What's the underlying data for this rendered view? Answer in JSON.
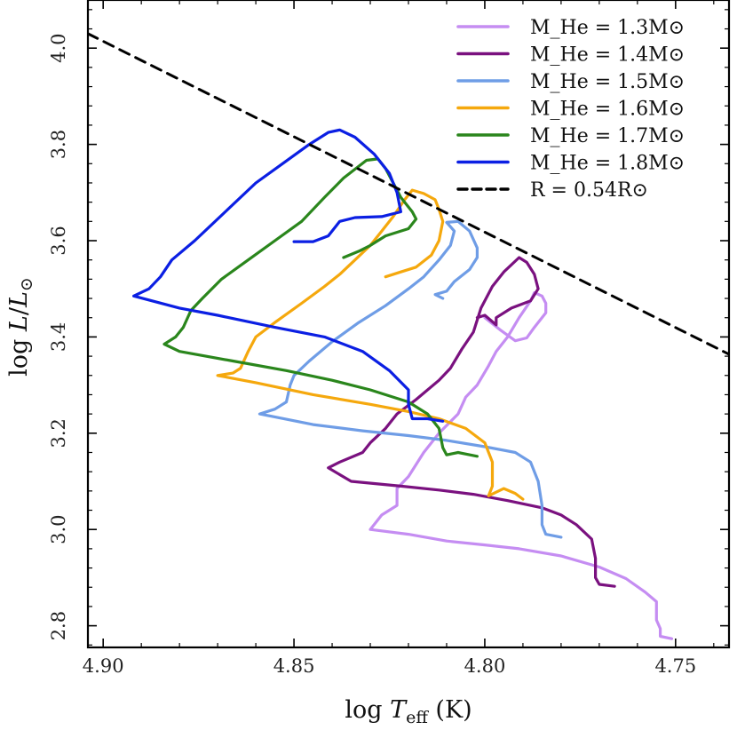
{
  "chart_data": {
    "type": "line",
    "xlabel": "log T_eff (K)",
    "ylabel": "log L/L⊙",
    "xlim": [
      4.904,
      4.736
    ],
    "ylim": [
      2.755,
      4.1
    ],
    "x_inverted": true,
    "x_ticks": [
      4.9,
      4.85,
      4.8,
      4.75
    ],
    "x_tick_labels": [
      "4.90",
      "4.85",
      "4.80",
      "4.75"
    ],
    "y_ticks": [
      2.8,
      3.0,
      3.2,
      3.4,
      3.6,
      3.8,
      4.0
    ],
    "y_tick_labels": [
      "2.8",
      "3.0",
      "3.2",
      "3.4",
      "3.6",
      "3.8",
      "4.0"
    ],
    "grid": false,
    "legend_position": "top-right",
    "series": [
      {
        "name": "M_He = 1.3M⊙",
        "color": "#c58df2",
        "style": "solid",
        "points": [
          [
            4.751,
            2.773
          ],
          [
            4.754,
            2.778
          ],
          [
            4.754,
            2.794
          ],
          [
            4.755,
            2.812
          ],
          [
            4.755,
            2.85
          ],
          [
            4.758,
            2.87
          ],
          [
            4.763,
            2.898
          ],
          [
            4.77,
            2.922
          ],
          [
            4.78,
            2.945
          ],
          [
            4.791,
            2.96
          ],
          [
            4.8,
            2.968
          ],
          [
            4.81,
            2.976
          ],
          [
            4.82,
            2.99
          ],
          [
            4.83,
            3.0
          ],
          [
            4.827,
            3.03
          ],
          [
            4.823,
            3.05
          ],
          [
            4.823,
            3.085
          ],
          [
            4.82,
            3.11
          ],
          [
            4.816,
            3.16
          ],
          [
            4.812,
            3.2
          ],
          [
            4.807,
            3.24
          ],
          [
            4.805,
            3.275
          ],
          [
            4.802,
            3.3
          ],
          [
            4.799,
            3.34
          ],
          [
            4.797,
            3.37
          ],
          [
            4.794,
            3.4
          ],
          [
            4.791,
            3.44
          ],
          [
            4.788,
            3.475
          ],
          [
            4.787,
            3.492
          ],
          [
            4.785,
            3.485
          ],
          [
            4.784,
            3.47
          ],
          [
            4.784,
            3.45
          ],
          [
            4.787,
            3.42
          ],
          [
            4.789,
            3.398
          ],
          [
            4.792,
            3.392
          ],
          [
            4.796,
            3.415
          ],
          [
            4.8,
            3.44
          ]
        ]
      },
      {
        "name": "M_He = 1.4M⊙",
        "color": "#7a117f",
        "style": "solid",
        "points": [
          [
            4.766,
            2.882
          ],
          [
            4.77,
            2.886
          ],
          [
            4.771,
            2.9
          ],
          [
            4.771,
            2.94
          ],
          [
            4.772,
            2.98
          ],
          [
            4.776,
            3.01
          ],
          [
            4.78,
            3.03
          ],
          [
            4.785,
            3.045
          ],
          [
            4.794,
            3.06
          ],
          [
            4.803,
            3.073
          ],
          [
            4.812,
            3.082
          ],
          [
            4.822,
            3.09
          ],
          [
            4.835,
            3.1
          ],
          [
            4.841,
            3.128
          ],
          [
            4.838,
            3.14
          ],
          [
            4.832,
            3.16
          ],
          [
            4.83,
            3.18
          ],
          [
            4.826,
            3.21
          ],
          [
            4.823,
            3.24
          ],
          [
            4.818,
            3.27
          ],
          [
            4.812,
            3.31
          ],
          [
            4.809,
            3.335
          ],
          [
            4.806,
            3.375
          ],
          [
            4.803,
            3.41
          ],
          [
            4.801,
            3.46
          ],
          [
            4.798,
            3.505
          ],
          [
            4.795,
            3.535
          ],
          [
            4.791,
            3.565
          ],
          [
            4.789,
            3.555
          ],
          [
            4.787,
            3.53
          ],
          [
            4.786,
            3.5
          ],
          [
            4.788,
            3.475
          ],
          [
            4.793,
            3.46
          ],
          [
            4.797,
            3.44
          ],
          [
            4.797,
            3.425
          ],
          [
            4.8,
            3.445
          ],
          [
            4.802,
            3.44
          ]
        ]
      },
      {
        "name": "M_He = 1.5M⊙",
        "color": "#6f9de6",
        "style": "solid",
        "points": [
          [
            4.78,
            2.984
          ],
          [
            4.784,
            2.99
          ],
          [
            4.785,
            3.01
          ],
          [
            4.785,
            3.05
          ],
          [
            4.786,
            3.1
          ],
          [
            4.788,
            3.14
          ],
          [
            4.792,
            3.16
          ],
          [
            4.8,
            3.172
          ],
          [
            4.81,
            3.185
          ],
          [
            4.82,
            3.195
          ],
          [
            4.832,
            3.205
          ],
          [
            4.845,
            3.218
          ],
          [
            4.859,
            3.24
          ],
          [
            4.855,
            3.25
          ],
          [
            4.852,
            3.265
          ],
          [
            4.851,
            3.3
          ],
          [
            4.85,
            3.32
          ],
          [
            4.846,
            3.35
          ],
          [
            4.84,
            3.39
          ],
          [
            4.833,
            3.43
          ],
          [
            4.826,
            3.465
          ],
          [
            4.82,
            3.5
          ],
          [
            4.816,
            3.525
          ],
          [
            4.812,
            3.56
          ],
          [
            4.809,
            3.59
          ],
          [
            4.808,
            3.62
          ],
          [
            4.81,
            3.638
          ],
          [
            4.807,
            3.64
          ],
          [
            4.804,
            3.62
          ],
          [
            4.802,
            3.585
          ],
          [
            4.802,
            3.565
          ],
          [
            4.804,
            3.54
          ],
          [
            4.808,
            3.515
          ],
          [
            4.81,
            3.495
          ],
          [
            4.813,
            3.488
          ],
          [
            4.811,
            3.48
          ]
        ]
      },
      {
        "name": "M_He = 1.6M⊙",
        "color": "#f5a80d",
        "style": "solid",
        "points": [
          [
            4.79,
            3.063
          ],
          [
            4.792,
            3.075
          ],
          [
            4.795,
            3.085
          ],
          [
            4.799,
            3.07
          ],
          [
            4.798,
            3.09
          ],
          [
            4.798,
            3.14
          ],
          [
            4.8,
            3.18
          ],
          [
            4.805,
            3.21
          ],
          [
            4.812,
            3.23
          ],
          [
            4.82,
            3.245
          ],
          [
            4.83,
            3.26
          ],
          [
            4.845,
            3.28
          ],
          [
            4.86,
            3.305
          ],
          [
            4.87,
            3.32
          ],
          [
            4.866,
            3.325
          ],
          [
            4.864,
            3.335
          ],
          [
            4.862,
            3.37
          ],
          [
            4.86,
            3.4
          ],
          [
            4.855,
            3.43
          ],
          [
            4.848,
            3.47
          ],
          [
            4.842,
            3.505
          ],
          [
            4.838,
            3.53
          ],
          [
            4.834,
            3.56
          ],
          [
            4.83,
            3.59
          ],
          [
            4.827,
            3.62
          ],
          [
            4.824,
            3.65
          ],
          [
            4.821,
            3.685
          ],
          [
            4.819,
            3.705
          ],
          [
            4.816,
            3.698
          ],
          [
            4.813,
            3.685
          ],
          [
            4.812,
            3.665
          ],
          [
            4.811,
            3.64
          ],
          [
            4.812,
            3.6
          ],
          [
            4.814,
            3.57
          ],
          [
            4.818,
            3.545
          ],
          [
            4.822,
            3.535
          ],
          [
            4.826,
            3.525
          ]
        ]
      },
      {
        "name": "M_He = 1.7M⊙",
        "color": "#2a861c",
        "style": "solid",
        "points": [
          [
            4.802,
            3.152
          ],
          [
            4.807,
            3.16
          ],
          [
            4.81,
            3.155
          ],
          [
            4.811,
            3.17
          ],
          [
            4.812,
            3.21
          ],
          [
            4.815,
            3.24
          ],
          [
            4.82,
            3.265
          ],
          [
            4.83,
            3.29
          ],
          [
            4.84,
            3.31
          ],
          [
            4.852,
            3.33
          ],
          [
            4.866,
            3.35
          ],
          [
            4.88,
            3.37
          ],
          [
            4.884,
            3.385
          ],
          [
            4.881,
            3.4
          ],
          [
            4.879,
            3.42
          ],
          [
            4.877,
            3.455
          ],
          [
            4.874,
            3.48
          ],
          [
            4.869,
            3.52
          ],
          [
            4.862,
            3.56
          ],
          [
            4.855,
            3.6
          ],
          [
            4.848,
            3.64
          ],
          [
            4.842,
            3.69
          ],
          [
            4.837,
            3.73
          ],
          [
            4.831,
            3.767
          ],
          [
            4.828,
            3.77
          ],
          [
            4.826,
            3.75
          ],
          [
            4.824,
            3.72
          ],
          [
            4.822,
            3.69
          ],
          [
            4.819,
            3.66
          ],
          [
            4.818,
            3.645
          ],
          [
            4.82,
            3.625
          ],
          [
            4.826,
            3.61
          ],
          [
            4.83,
            3.59
          ],
          [
            4.833,
            3.578
          ],
          [
            4.837,
            3.565
          ]
        ]
      },
      {
        "name": "M_He = 1.8M⊙",
        "color": "#0b1fe3",
        "style": "solid",
        "points": [
          [
            4.811,
            3.225
          ],
          [
            4.815,
            3.23
          ],
          [
            4.819,
            3.23
          ],
          [
            4.82,
            3.26
          ],
          [
            4.82,
            3.29
          ],
          [
            4.825,
            3.33
          ],
          [
            4.832,
            3.37
          ],
          [
            4.842,
            3.4
          ],
          [
            4.855,
            3.42
          ],
          [
            4.87,
            3.445
          ],
          [
            4.88,
            3.46
          ],
          [
            4.892,
            3.485
          ],
          [
            4.888,
            3.5
          ],
          [
            4.885,
            3.525
          ],
          [
            4.882,
            3.56
          ],
          [
            4.876,
            3.6
          ],
          [
            4.868,
            3.66
          ],
          [
            4.86,
            3.72
          ],
          [
            4.853,
            3.76
          ],
          [
            4.846,
            3.8
          ],
          [
            4.841,
            3.825
          ],
          [
            4.838,
            3.83
          ],
          [
            4.834,
            3.815
          ],
          [
            4.829,
            3.78
          ],
          [
            4.825,
            3.74
          ],
          [
            4.823,
            3.7
          ],
          [
            4.822,
            3.66
          ],
          [
            4.827,
            3.65
          ],
          [
            4.834,
            3.648
          ],
          [
            4.838,
            3.64
          ],
          [
            4.841,
            3.61
          ],
          [
            4.845,
            3.598
          ],
          [
            4.85,
            3.598
          ]
        ]
      },
      {
        "name": "R = 0.54R⊙",
        "color": "#000000",
        "style": "dashed",
        "points": [
          [
            4.904,
            4.03
          ],
          [
            4.736,
            3.364
          ]
        ]
      }
    ]
  }
}
